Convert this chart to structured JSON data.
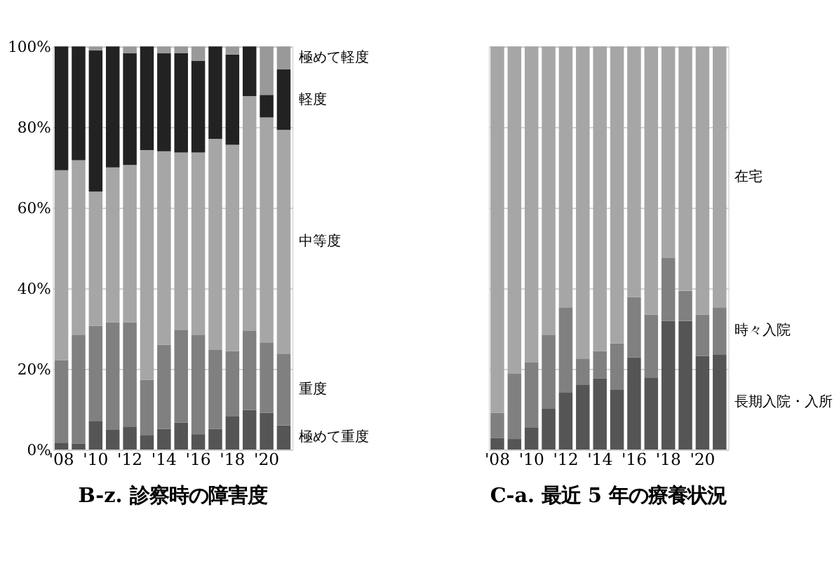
{
  "chart_data": [
    {
      "type": "bar",
      "stacked": true,
      "title": "B-z. 診察時の障害度",
      "categories": [
        "'08",
        null,
        "'10",
        null,
        "'12",
        null,
        "'14",
        null,
        "'16",
        null,
        "'18",
        null,
        "'20",
        null
      ],
      "series": [
        {
          "name": "極めて重度",
          "color": "#555555",
          "values": [
            1.7,
            1.5,
            7.1,
            5,
            5.7,
            3.5,
            5.1,
            6.7,
            3.8,
            5.1,
            8.2,
            9.8,
            9.1,
            6
          ]
        },
        {
          "name": "重度",
          "color": "#808080",
          "values": [
            20.5,
            27,
            23.6,
            26.6,
            25.9,
            13.8,
            20.9,
            23,
            24.7,
            19.6,
            16.2,
            19.6,
            17.5,
            17.8
          ]
        },
        {
          "name": "中等度",
          "color": "#a6a6a6",
          "values": [
            47.1,
            43.3,
            33.3,
            38.4,
            39,
            57,
            48,
            44,
            45.2,
            52.4,
            51.2,
            58.3,
            55.8,
            55.5
          ]
        },
        {
          "name": "軽度",
          "color": "#222222",
          "values": [
            30.7,
            28.2,
            35,
            30,
            27.7,
            25.7,
            24.3,
            24.6,
            22.8,
            22.9,
            22.4,
            12.3,
            5.6,
            15
          ]
        },
        {
          "name": "極めて軽度",
          "color": "#999999",
          "values": [
            0,
            0,
            1,
            0,
            1.7,
            0,
            1.7,
            1.7,
            3.5,
            0,
            2,
            0,
            12,
            5.7
          ]
        }
      ],
      "ylim": [
        0,
        100
      ],
      "yticks": [
        {
          "value": 0,
          "label": "0%"
        },
        {
          "value": 20,
          "label": "20%"
        },
        {
          "value": 40,
          "label": "40%"
        },
        {
          "value": 60,
          "label": "60%"
        },
        {
          "value": 80,
          "label": "80%"
        },
        {
          "value": 100,
          "label": "100%"
        }
      ],
      "grid": "y"
    },
    {
      "type": "bar",
      "stacked": true,
      "title": "C-a. 最近 5 年の療養状況",
      "categories": [
        "'08",
        null,
        "'10",
        null,
        "'12",
        null,
        "'14",
        null,
        "'16",
        null,
        "'18",
        null,
        "'20",
        null
      ],
      "series": [
        {
          "name": "長期入院・入所",
          "color": "#555555",
          "values": [
            2.9,
            2.6,
            5.4,
            10.1,
            14.1,
            16,
            17.6,
            14.8,
            22.9,
            17.9,
            31.9,
            31.9,
            23.2,
            23.5
          ]
        },
        {
          "name": "時々入院",
          "color": "#808080",
          "values": [
            6.2,
            16.2,
            16.2,
            18.4,
            21.2,
            6.6,
            6.8,
            11.5,
            14.9,
            15.6,
            15.6,
            7.5,
            10.3,
            11.8
          ]
        },
        {
          "name": "在宅",
          "color": "#a6a6a6",
          "values": [
            90.9,
            81.2,
            78.4,
            71.5,
            64.7,
            77.4,
            75.6,
            73.7,
            62.2,
            66.5,
            52.5,
            60.6,
            66.5,
            64.7
          ]
        }
      ],
      "ylim": [
        0,
        100
      ],
      "yticks": [
        0,
        20,
        40,
        60,
        80,
        100
      ],
      "tick_labels": "x",
      "grid": "y"
    }
  ]
}
